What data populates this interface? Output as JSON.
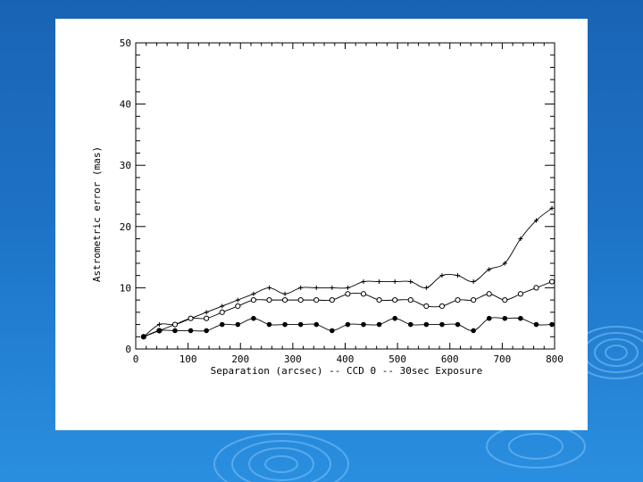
{
  "chart_data": {
    "type": "line",
    "title": "",
    "xlabel": "Separation (arcsec) -- CCD 0 -- 30sec Exposure",
    "ylabel": "Astrometric error (mas)",
    "xlim": [
      0,
      800
    ],
    "ylim": [
      0,
      50
    ],
    "x_ticks": [
      "0",
      "100",
      "200",
      "300",
      "400",
      "500",
      "600",
      "700",
      "800"
    ],
    "y_ticks": [
      "0",
      "10",
      "20",
      "30",
      "40",
      "50"
    ],
    "grid": false,
    "series": [
      {
        "marker": "cross",
        "x": [
          15,
          45,
          75,
          105,
          135,
          165,
          195,
          225,
          255,
          285,
          315,
          345,
          375,
          405,
          435,
          465,
          495,
          525,
          555,
          585,
          615,
          645,
          675,
          705,
          735,
          765,
          795
        ],
        "y": [
          2,
          4,
          4,
          5,
          6,
          7,
          8,
          9,
          10,
          9,
          10,
          10,
          10,
          10,
          11,
          11,
          11,
          11,
          10,
          12,
          12,
          11,
          13,
          14,
          18,
          21,
          23
        ]
      },
      {
        "marker": "open-circle",
        "x": [
          15,
          45,
          75,
          105,
          135,
          165,
          195,
          225,
          255,
          285,
          315,
          345,
          375,
          405,
          435,
          465,
          495,
          525,
          555,
          585,
          615,
          645,
          675,
          705,
          735,
          765,
          795
        ],
        "y": [
          2,
          3,
          4,
          5,
          5,
          6,
          7,
          8,
          8,
          8,
          8,
          8,
          8,
          9,
          9,
          8,
          8,
          8,
          7,
          7,
          8,
          8,
          9,
          8,
          9,
          10,
          11
        ]
      },
      {
        "marker": "filled-circle",
        "x": [
          15,
          45,
          75,
          105,
          135,
          165,
          195,
          225,
          255,
          285,
          315,
          345,
          375,
          405,
          435,
          465,
          495,
          525,
          555,
          585,
          615,
          645,
          675,
          705,
          735,
          765,
          795
        ],
        "y": [
          2,
          3,
          3,
          3,
          3,
          4,
          4,
          5,
          4,
          4,
          4,
          4,
          3,
          4,
          4,
          4,
          5,
          4,
          4,
          4,
          4,
          3,
          5,
          5,
          5,
          4,
          4
        ]
      }
    ]
  },
  "colors": {
    "background_top": "#1a63b4",
    "background_bottom": "#2a8fe0",
    "card": "#ffffff",
    "ink": "#000000"
  }
}
